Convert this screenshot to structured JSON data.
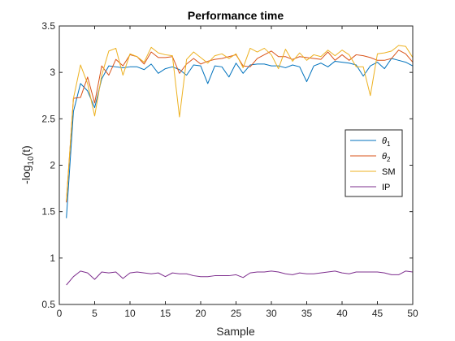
{
  "chart_data": {
    "type": "line",
    "title": "Performance time",
    "xlabel": "Sample",
    "ylabel": "-log",
    "ylabel_sub": "10",
    "ylabel_suffix": "(t)",
    "xlim": [
      0,
      50
    ],
    "ylim": [
      0.5,
      3.5
    ],
    "xticks": [
      0,
      5,
      10,
      15,
      20,
      25,
      30,
      35,
      40,
      45,
      50
    ],
    "yticks": [
      0.5,
      1,
      1.5,
      2,
      2.5,
      3,
      3.5
    ],
    "ytick_labels": [
      "0.5",
      "1",
      "1.5",
      "2",
      "2.5",
      "3",
      "3.5"
    ],
    "grid": false,
    "legend_position": "right",
    "x": [
      1,
      2,
      3,
      4,
      5,
      6,
      7,
      8,
      9,
      10,
      11,
      12,
      13,
      14,
      15,
      16,
      17,
      18,
      19,
      20,
      21,
      22,
      23,
      24,
      25,
      26,
      27,
      28,
      29,
      30,
      31,
      32,
      33,
      34,
      35,
      36,
      37,
      38,
      39,
      40,
      41,
      42,
      43,
      44,
      45,
      46,
      47,
      48,
      49,
      50
    ],
    "series": [
      {
        "name": "θ",
        "name_sub": "1",
        "color": "#0072BD",
        "values": [
          1.43,
          2.58,
          2.88,
          2.8,
          2.62,
          2.93,
          3.07,
          3.06,
          3.05,
          3.06,
          3.06,
          3.03,
          3.09,
          2.99,
          3.04,
          3.06,
          3.03,
          2.97,
          3.08,
          3.07,
          2.88,
          3.07,
          3.06,
          2.95,
          3.1,
          2.99,
          3.08,
          3.09,
          3.09,
          3.07,
          3.07,
          3.05,
          3.08,
          3.06,
          2.9,
          3.07,
          3.1,
          3.06,
          3.12,
          3.11,
          3.1,
          3.08,
          2.96,
          3.07,
          3.11,
          3.04,
          3.15,
          3.13,
          3.11,
          3.07
        ]
      },
      {
        "name": "θ",
        "name_sub": "2",
        "color": "#D95319",
        "values": [
          1.6,
          2.72,
          2.73,
          2.95,
          2.67,
          3.07,
          2.97,
          3.14,
          3.07,
          3.19,
          3.17,
          3.09,
          3.22,
          3.16,
          3.16,
          3.17,
          2.99,
          3.09,
          3.15,
          3.09,
          3.12,
          3.14,
          3.15,
          3.17,
          3.19,
          3.07,
          3.06,
          3.15,
          3.19,
          3.23,
          3.17,
          3.17,
          3.14,
          3.17,
          3.16,
          3.15,
          3.14,
          3.22,
          3.13,
          3.19,
          3.13,
          3.19,
          3.18,
          3.16,
          3.13,
          3.13,
          3.15,
          3.24,
          3.2,
          3.11
        ]
      },
      {
        "name": "SM",
        "name_sub": "",
        "color": "#EDB120",
        "values": [
          1.62,
          2.72,
          3.08,
          2.88,
          2.53,
          2.97,
          3.23,
          3.26,
          2.97,
          3.2,
          3.17,
          3.11,
          3.27,
          3.21,
          3.19,
          3.18,
          2.52,
          3.14,
          3.22,
          3.16,
          3.1,
          3.18,
          3.2,
          3.15,
          3.2,
          3.05,
          3.26,
          3.22,
          3.26,
          3.19,
          3.04,
          3.25,
          3.12,
          3.21,
          3.13,
          3.19,
          3.17,
          3.24,
          3.18,
          3.24,
          3.19,
          3.06,
          3.06,
          2.75,
          3.2,
          3.21,
          3.23,
          3.29,
          3.28,
          3.16
        ]
      },
      {
        "name": "IP",
        "name_sub": "",
        "color": "#7E2F8E",
        "values": [
          0.71,
          0.8,
          0.86,
          0.84,
          0.77,
          0.85,
          0.84,
          0.85,
          0.78,
          0.84,
          0.85,
          0.84,
          0.83,
          0.84,
          0.8,
          0.84,
          0.83,
          0.83,
          0.81,
          0.8,
          0.8,
          0.81,
          0.81,
          0.81,
          0.82,
          0.79,
          0.84,
          0.85,
          0.85,
          0.86,
          0.85,
          0.83,
          0.82,
          0.84,
          0.83,
          0.83,
          0.84,
          0.85,
          0.86,
          0.84,
          0.83,
          0.85,
          0.85,
          0.85,
          0.85,
          0.84,
          0.82,
          0.82,
          0.86,
          0.85
        ]
      }
    ]
  }
}
